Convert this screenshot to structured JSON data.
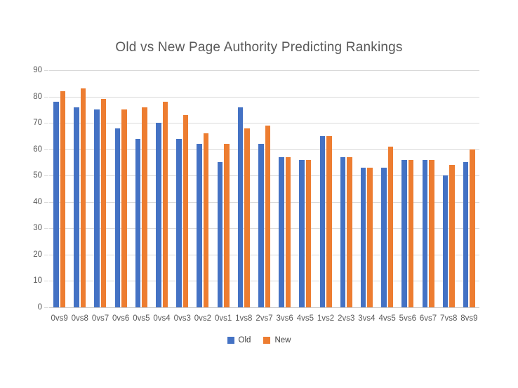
{
  "page": {
    "background": "#ffffff"
  },
  "chart_data": {
    "type": "bar",
    "title": "Old vs New Page Authority Predicting Rankings",
    "categories": [
      "0vs9",
      "0vs8",
      "0vs7",
      "0vs6",
      "0vs5",
      "0vs4",
      "0vs3",
      "0vs2",
      "0vs1",
      "1vs8",
      "2vs7",
      "3vs6",
      "4vs5",
      "1vs2",
      "2vs3",
      "3vs4",
      "4vs5",
      "5vs6",
      "6vs7",
      "7vs8",
      "8vs9"
    ],
    "series": [
      {
        "name": "Old",
        "color": "#4472C4",
        "values": [
          78,
          76,
          75,
          68,
          64,
          70,
          64,
          62,
          55,
          76,
          62,
          57,
          56,
          65,
          57,
          53,
          53,
          56,
          56,
          50,
          55
        ]
      },
      {
        "name": "New",
        "color": "#ED7D31",
        "values": [
          82,
          83,
          79,
          75,
          76,
          78,
          73,
          66,
          62,
          68,
          69,
          57,
          56,
          65,
          57,
          53,
          61,
          56,
          56,
          54,
          60
        ]
      }
    ],
    "xlabel": "",
    "ylabel": "",
    "ylim": [
      0,
      90
    ],
    "yticks": [
      0,
      10,
      20,
      30,
      40,
      50,
      60,
      70,
      80,
      90
    ],
    "grid": true,
    "legend_position": "bottom"
  },
  "colors": {
    "grid": "#d9d9d9",
    "axis_text": "#595959",
    "title_text": "#595959",
    "legend_text": "#404040"
  }
}
